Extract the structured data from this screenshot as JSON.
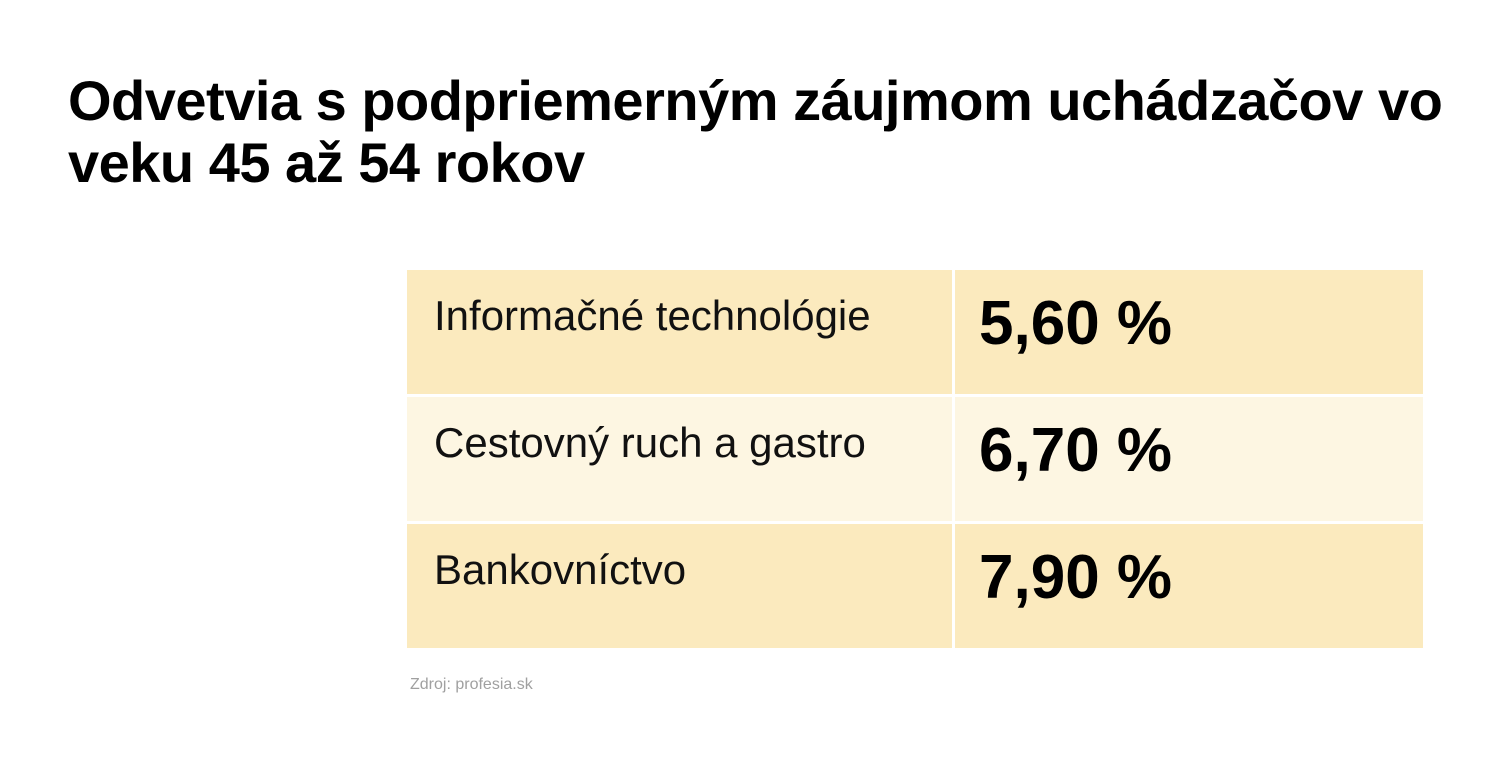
{
  "title": "Odvetvia s podpriemerným záujmom uchádzačov vo veku 45 až 54 rokov",
  "colors": {
    "row_odd": "#fbeabe",
    "row_even": "#fdf6e2",
    "text": "#000000",
    "source": "#a0a0a0"
  },
  "chart_data": {
    "type": "table",
    "title": "Odvetvia s podpriemerným záujmom uchádzačov vo veku 45 až 54 rokov",
    "rows": [
      {
        "label": "Informačné technológie",
        "value": 5.6,
        "display": "5,60 %"
      },
      {
        "label": "Cestovný ruch a gastro",
        "value": 6.7,
        "display": "6,70 %"
      },
      {
        "label": "Bankovníctvo",
        "value": 7.9,
        "display": "7,90 %"
      }
    ]
  },
  "source": "Zdroj: profesia.sk"
}
